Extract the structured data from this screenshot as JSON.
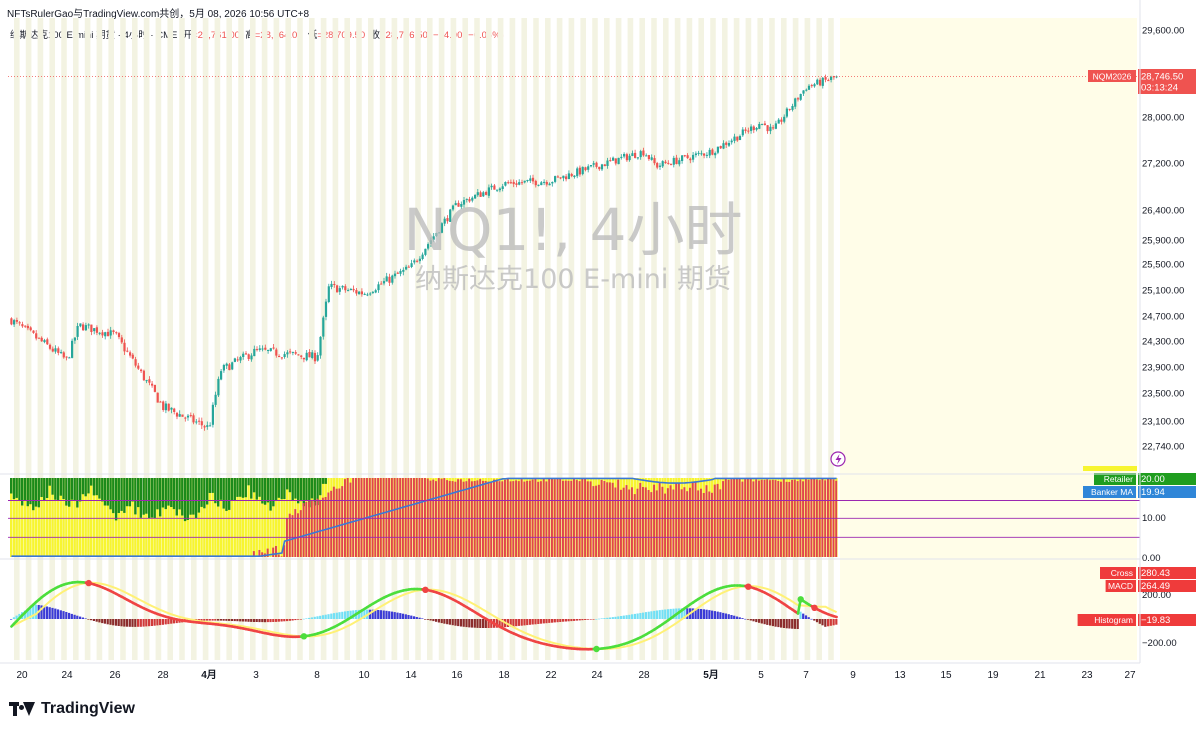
{
  "header": {
    "publisher": "NFTsRulerGao与TradingView.com共创，5月 08, 2026 10:56 UTC+8"
  },
  "symbol_line": {
    "name": "纳斯达克100 E-mini 期货 · 4小时 · CME",
    "open_label": "开",
    "open": "=28,761.00",
    "high_label": "高",
    "high": "=28,764.00",
    "low_label": "低",
    "low": "=28,709.50",
    "close_label": "收",
    "close": "=28,746.50",
    "change": "−14.00 (−0.05%)"
  },
  "watermark": {
    "line1": "NQ1!, 4小时",
    "line2": "纳斯达克100 E-mini 期货"
  },
  "price_tag": {
    "contract": "NQM2026",
    "price": "28,746.50",
    "countdown": "03:13:24"
  },
  "colors": {
    "up": "#26a69a",
    "down": "#ef5350",
    "retailer_green": "#1b8a1b",
    "retailer_yellow": "#f7f530",
    "banker_red": "#e0454d",
    "banker_ma": "#3a78d6",
    "purple_line": "#9b27b0",
    "hist_cyan": "#73e0f5",
    "hist_blue": "#3b3bd6",
    "hist_red": "#d03a3a",
    "hist_maroon": "#8b2c2c",
    "cross_green": "#4cde3c",
    "macd_red": "#ef4444",
    "signal_yellow": "#fff176",
    "weekend_band": "#f3f3e2",
    "future_area": "#fffde8"
  },
  "brand": {
    "name": "TradingView",
    "logo": "tradingview-logo-icon"
  },
  "alert_icon": "lightning-icon",
  "chart_data": [
    {
      "type": "candlestick",
      "title": "NQ1!, 4小时",
      "subtitle": "纳斯达克100 E-mini 期货",
      "x_ticks": [
        "20",
        "24",
        "26",
        "28",
        "4月",
        "3",
        "8",
        "10",
        "14",
        "16",
        "18",
        "22",
        "24",
        "28",
        "5月",
        "5",
        "7",
        "9",
        "13",
        "15",
        "19",
        "21",
        "23",
        "27"
      ],
      "y_ticks": [
        "29,600.00",
        "28,000.00",
        "27,200.00",
        "26,400.00",
        "25,900.00",
        "25,500.00",
        "25,100.00",
        "24,700.00",
        "24,300.00",
        "23,900.00",
        "23,500.00",
        "23,100.00",
        "22,740.00"
      ],
      "ylim": [
        22740,
        29600
      ],
      "approx_close_path": [
        {
          "x": "20",
          "y": 24650
        },
        {
          "x": "24",
          "y": 24000
        },
        {
          "x": "24",
          "y": 24550
        },
        {
          "x": "26",
          "y": 24400
        },
        {
          "x": "28",
          "y": 23300
        },
        {
          "x": "4月",
          "y": 23000
        },
        {
          "x": "4月",
          "y": 23850
        },
        {
          "x": "3",
          "y": 24150
        },
        {
          "x": "8",
          "y": 24050
        },
        {
          "x": "8",
          "y": 25150
        },
        {
          "x": "10",
          "y": 25050
        },
        {
          "x": "14",
          "y": 25450
        },
        {
          "x": "16",
          "y": 26500
        },
        {
          "x": "18",
          "y": 26850
        },
        {
          "x": "22",
          "y": 26900
        },
        {
          "x": "24",
          "y": 27150
        },
        {
          "x": "28",
          "y": 27400
        },
        {
          "x": "28",
          "y": 27150
        },
        {
          "x": "5月",
          "y": 27400
        },
        {
          "x": "5",
          "y": 27900
        },
        {
          "x": "5",
          "y": 27750
        },
        {
          "x": "7",
          "y": 28550
        },
        {
          "x": "7",
          "y": 28746.5
        }
      ],
      "last_price": 28746.5
    },
    {
      "type": "bar",
      "y_ticks": [
        "10.00",
        "0.00"
      ],
      "ylim": [
        0,
        20
      ],
      "legend": [
        {
          "name": "Retailer",
          "value": "20.00"
        },
        {
          "name": "Banker MA",
          "value": "19.94"
        }
      ]
    },
    {
      "type": "line",
      "y_ticks": [
        "200.00",
        "−200.00"
      ],
      "legend": [
        {
          "name": "Cross",
          "value": "280.43"
        },
        {
          "name": "MACD",
          "value": "264.49"
        },
        {
          "name": "Histogram",
          "value": "−19.83"
        }
      ]
    }
  ]
}
